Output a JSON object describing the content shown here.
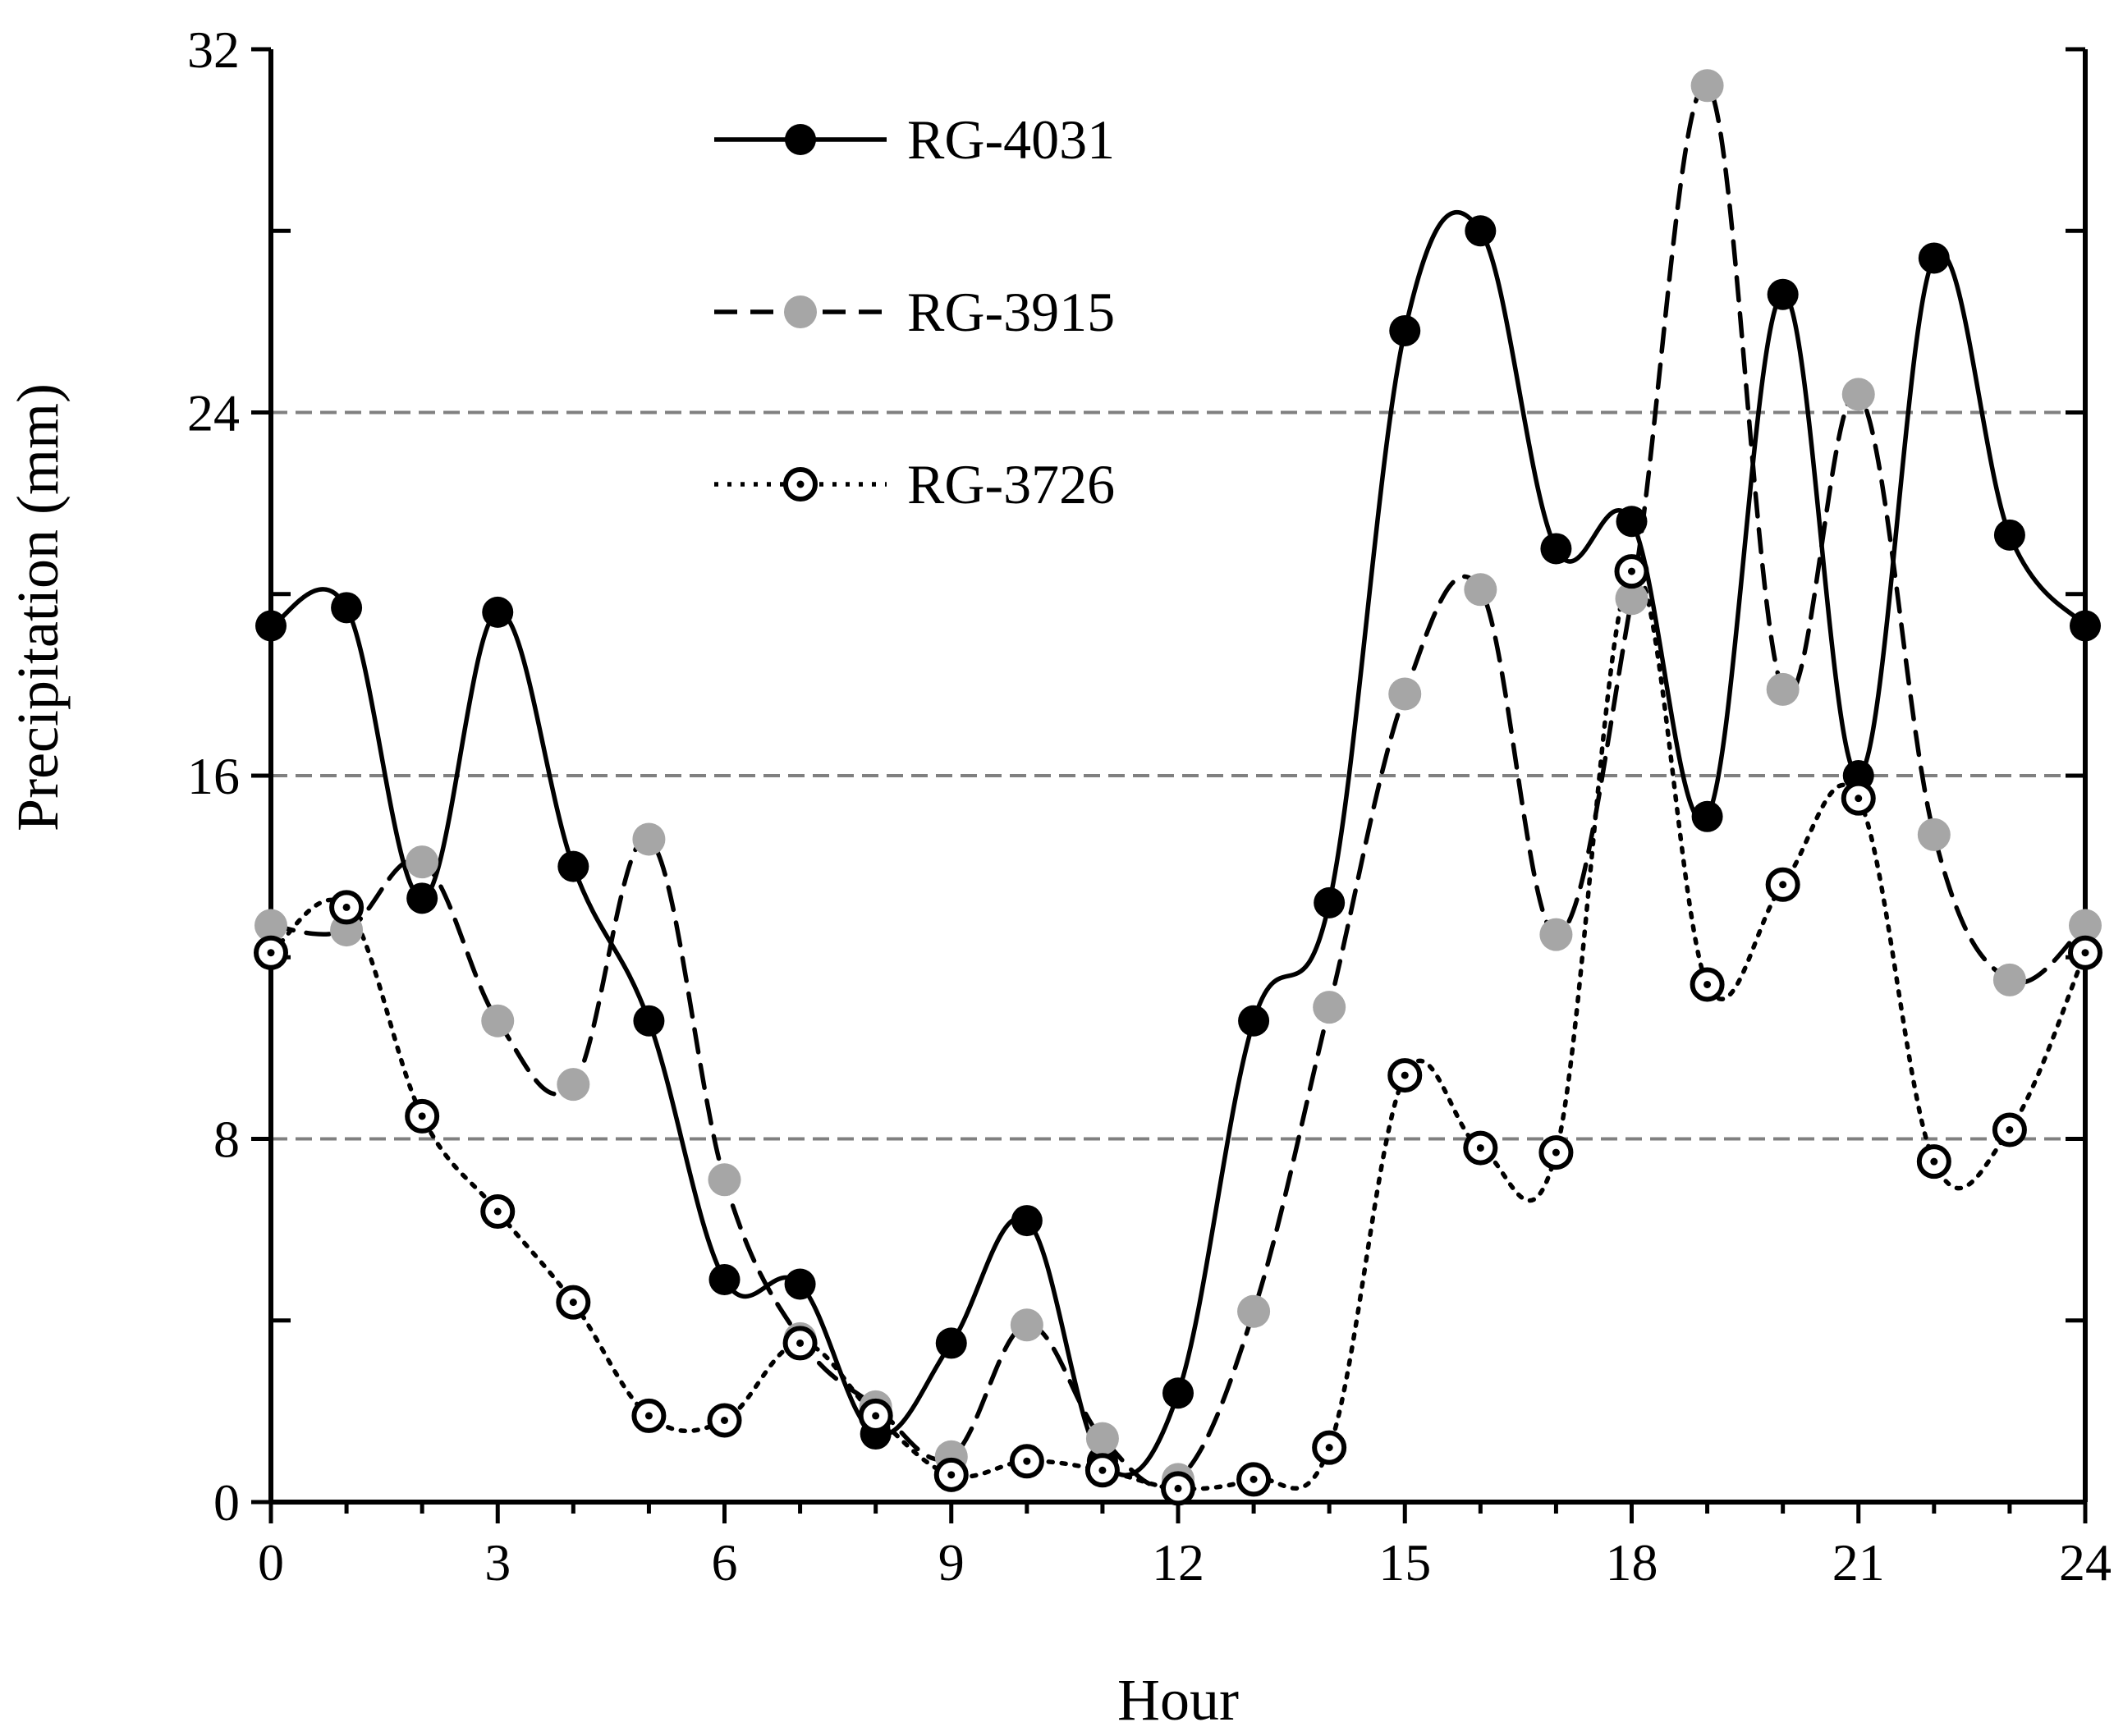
{
  "chart_data": {
    "type": "line",
    "title": "",
    "xlabel": "Hour",
    "ylabel": "Precipitation (mm)",
    "xlim": [
      0,
      24
    ],
    "ylim": [
      0,
      32
    ],
    "x_ticks": [
      0,
      3,
      6,
      9,
      12,
      15,
      18,
      21,
      24
    ],
    "y_ticks": [
      0,
      8,
      16,
      24,
      32
    ],
    "y_minor_ticks": [
      4,
      12,
      20,
      28
    ],
    "grid": {
      "horizontal": [
        8,
        16,
        24
      ],
      "style": "dashed",
      "color": "#808080"
    },
    "legend": {
      "placement": "top-left"
    },
    "x": [
      0,
      1,
      2,
      3,
      4,
      5,
      6,
      7,
      8,
      9,
      10,
      11,
      12,
      13,
      14,
      15,
      16,
      17,
      18,
      19,
      20,
      21,
      22,
      23,
      24
    ],
    "series": [
      {
        "name": "RG-4031",
        "line": "solid",
        "marker": "filled-black",
        "color": "#000000",
        "values": [
          19.3,
          19.7,
          13.3,
          19.6,
          14.0,
          10.6,
          4.9,
          4.8,
          1.5,
          3.5,
          6.2,
          0.9,
          2.4,
          10.6,
          13.2,
          25.8,
          28.0,
          21.0,
          21.6,
          15.1,
          26.6,
          16.0,
          27.4,
          21.3,
          19.3
        ]
      },
      {
        "name": "RG-3915",
        "line": "dashed",
        "marker": "filled-gray",
        "color": "#a6a6a6",
        "values": [
          12.7,
          12.6,
          14.1,
          10.6,
          9.2,
          14.6,
          7.1,
          3.6,
          2.1,
          1.0,
          3.9,
          1.4,
          0.5,
          4.2,
          10.9,
          17.8,
          20.1,
          12.5,
          19.9,
          31.2,
          17.9,
          24.4,
          14.7,
          11.5,
          12.7
        ]
      },
      {
        "name": "RG-3726",
        "line": "dotted",
        "marker": "open-circle",
        "color": "#000000",
        "values": [
          12.1,
          13.1,
          8.5,
          6.4,
          4.4,
          1.9,
          1.8,
          3.5,
          1.9,
          0.6,
          0.9,
          0.7,
          0.3,
          0.5,
          1.2,
          9.4,
          7.8,
          7.7,
          20.5,
          11.4,
          13.6,
          15.5,
          7.5,
          8.2,
          12.1
        ]
      }
    ]
  }
}
